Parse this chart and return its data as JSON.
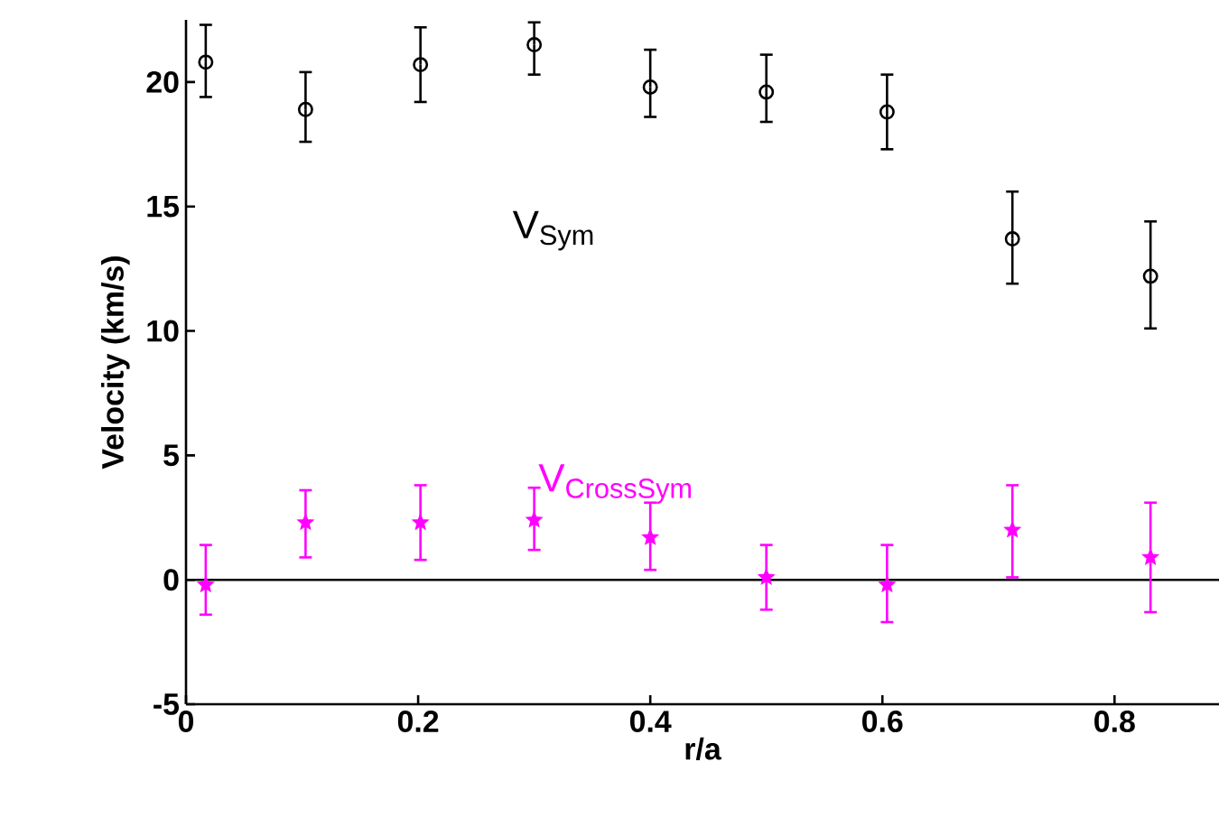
{
  "chart_data": {
    "type": "scatter",
    "xlabel": "r/a",
    "ylabel": "Velocity (km/s)",
    "xlim": [
      0,
      0.89
    ],
    "ylim": [
      -5,
      22.5
    ],
    "xticks": [
      0,
      0.2,
      0.4,
      0.6,
      0.8
    ],
    "yticks": [
      -5,
      0,
      5,
      10,
      15,
      20
    ],
    "grid": false,
    "ref_lines": [
      {
        "axis": "y",
        "value": 0,
        "color": "#000000"
      }
    ],
    "series": [
      {
        "name": "V$_{Sym}$",
        "color": "#000000",
        "marker": "circle",
        "x": [
          0.017,
          0.103,
          0.202,
          0.3,
          0.4,
          0.5,
          0.604,
          0.712,
          0.831
        ],
        "values": [
          20.8,
          18.9,
          20.7,
          21.5,
          19.8,
          19.6,
          18.8,
          13.7,
          12.2
        ],
        "errors": [
          [
            19.4,
            22.3
          ],
          [
            17.6,
            20.4
          ],
          [
            19.2,
            22.2
          ],
          [
            20.3,
            22.4
          ],
          [
            18.6,
            21.3
          ],
          [
            18.4,
            21.1
          ],
          [
            17.3,
            20.3
          ],
          [
            11.9,
            15.6
          ],
          [
            10.1,
            14.4
          ]
        ]
      },
      {
        "name": "V$_{CrossSym}$",
        "color": "#ff00ff",
        "marker": "star",
        "x": [
          0.017,
          0.103,
          0.202,
          0.3,
          0.4,
          0.5,
          0.604,
          0.712,
          0.831
        ],
        "values": [
          -0.2,
          2.3,
          2.3,
          2.4,
          1.7,
          0.1,
          -0.2,
          2.0,
          0.9
        ],
        "errors": [
          [
            -1.4,
            1.4
          ],
          [
            0.9,
            3.6
          ],
          [
            0.8,
            3.8
          ],
          [
            1.2,
            3.7
          ],
          [
            0.4,
            3.1
          ],
          [
            -1.2,
            1.4
          ],
          [
            -1.7,
            1.4
          ],
          [
            0.1,
            3.8
          ],
          [
            -1.3,
            3.1
          ]
        ]
      }
    ]
  }
}
